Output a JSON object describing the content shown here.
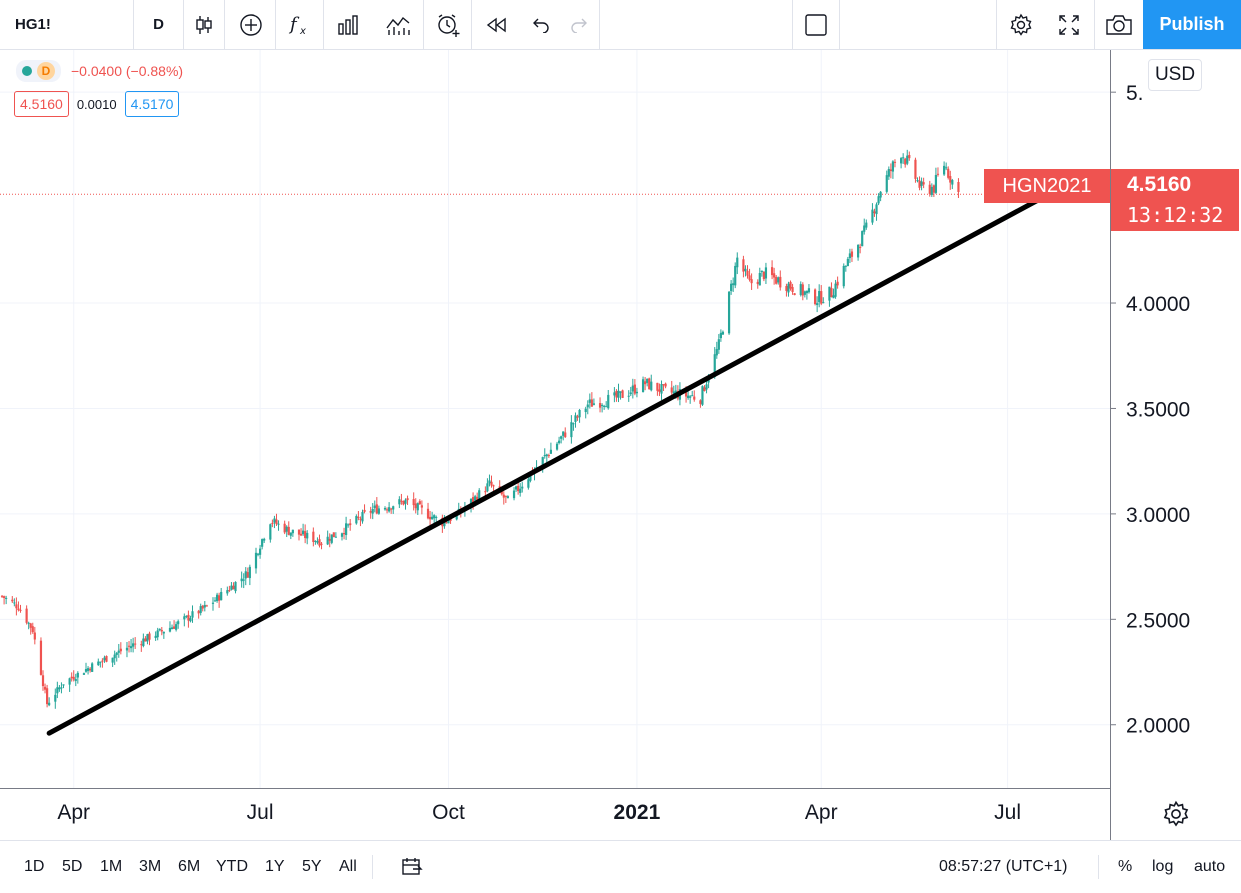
{
  "toolbar": {
    "symbol": "HG1!",
    "interval": "D",
    "publish_label": "Publish"
  },
  "legend": {
    "interval_badge": "D",
    "change": "−0.0400 (−0.88%)",
    "bid": "4.5160",
    "spread": "0.0010",
    "ask": "4.5170"
  },
  "currency": "USD",
  "last": {
    "symbol": "HGN2021",
    "price": "4.5160",
    "countdown": "13:12:32"
  },
  "bottom": {
    "ranges": [
      "1D",
      "5D",
      "1M",
      "3M",
      "6M",
      "YTD",
      "1Y",
      "5Y",
      "All"
    ],
    "time": "08:57:27 (UTC+1)",
    "percent": "%",
    "log": "log",
    "auto": "auto"
  },
  "colors": {
    "up": "#26a69a",
    "down": "#ef5350",
    "trendline": "#000000",
    "accent": "#2196f3"
  },
  "chart_data": {
    "type": "candlestick",
    "title": "HG1!",
    "y_ticks": [
      "2.0000",
      "2.5000",
      "3.0000",
      "3.5000",
      "4.0000",
      "5."
    ],
    "x_ticks": [
      "Apr",
      "Jul",
      "Oct",
      "2021",
      "Apr",
      "Jul"
    ],
    "ylim": [
      1.7,
      5.2
    ],
    "xlim": [
      "2020-02-25",
      "2021-08-20"
    ],
    "grid": true,
    "current_price": 4.516,
    "series": {
      "dates": [
        "2020-02-26",
        "2020-03-05",
        "2020-03-12",
        "2020-03-19",
        "2020-03-23",
        "2020-03-27",
        "2020-04-10",
        "2020-04-30",
        "2020-05-20",
        "2020-06-05",
        "2020-06-15",
        "2020-06-25",
        "2020-07-06",
        "2020-07-15",
        "2020-07-31",
        "2020-08-10",
        "2020-08-25",
        "2020-09-10",
        "2020-09-28",
        "2020-10-06",
        "2020-10-21",
        "2020-10-30",
        "2020-11-10",
        "2020-11-25",
        "2020-12-08",
        "2020-12-22",
        "2021-01-05",
        "2021-01-15",
        "2021-02-01",
        "2021-02-10",
        "2021-02-19",
        "2021-02-25",
        "2021-03-04",
        "2021-03-15",
        "2021-03-30",
        "2021-04-06",
        "2021-04-12",
        "2021-04-23",
        "2021-04-30",
        "2021-05-10",
        "2021-05-14",
        "2021-05-20",
        "2021-05-26",
        "2021-05-31",
        "2021-06-07"
      ],
      "close": [
        2.61,
        2.56,
        2.45,
        2.1,
        2.15,
        2.2,
        2.28,
        2.38,
        2.47,
        2.56,
        2.64,
        2.72,
        2.97,
        2.92,
        2.87,
        2.92,
        3.02,
        3.06,
        2.96,
        3.0,
        3.14,
        3.06,
        3.19,
        3.36,
        3.52,
        3.55,
        3.62,
        3.58,
        3.55,
        3.8,
        4.21,
        4.09,
        4.14,
        4.09,
        4.02,
        4.05,
        4.16,
        4.35,
        4.54,
        4.72,
        4.65,
        4.54,
        4.55,
        4.66,
        4.52
      ]
    },
    "annotations": [
      {
        "type": "trendline",
        "from": {
          "date": "2020-03-20",
          "price": 1.96
        },
        "to": {
          "date": "2021-07-20",
          "price": 4.51
        }
      }
    ]
  }
}
